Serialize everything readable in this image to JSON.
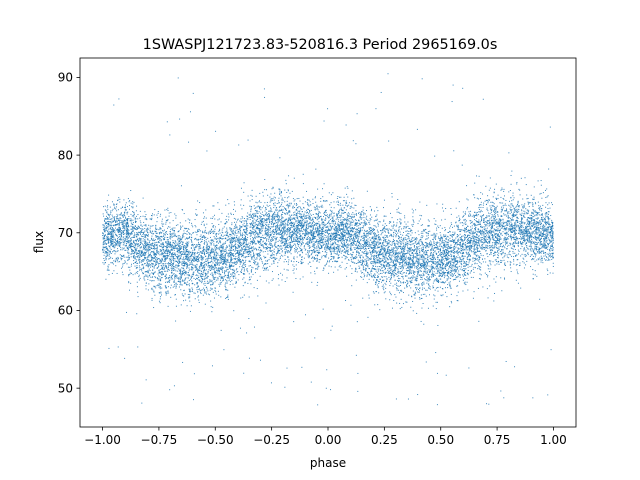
{
  "chart_data": {
    "type": "scatter",
    "title": "1SWASPJ121723.83-520816.3 Period 2965169.0s",
    "xlabel": "phase",
    "ylabel": "flux",
    "xlim": [
      -1.1,
      1.1
    ],
    "ylim": [
      45,
      92.5
    ],
    "xticks": [
      -1.0,
      -0.75,
      -0.5,
      -0.25,
      0.0,
      0.25,
      0.5,
      0.75,
      1.0
    ],
    "xtick_labels": [
      "−1.00",
      "−0.75",
      "−0.50",
      "−0.25",
      "0.00",
      "0.25",
      "0.50",
      "0.75",
      "1.00"
    ],
    "yticks": [
      50,
      60,
      70,
      80,
      90
    ],
    "ytick_labels": [
      "50",
      "60",
      "70",
      "80",
      "90"
    ],
    "grid": false,
    "legend": "none",
    "marker_color": "#1f77b4",
    "series": [
      {
        "phase_range": [
          -1.0,
          1.0
        ],
        "points_approx": 12000,
        "flux_profile": {
          "phase": [
            -1.0,
            -0.9,
            -0.8,
            -0.7,
            -0.6,
            -0.5,
            -0.4,
            -0.3,
            -0.2,
            -0.1,
            0.0,
            0.1,
            0.2,
            0.3,
            0.4,
            0.5,
            0.6,
            0.7,
            0.8,
            0.9,
            1.0
          ],
          "median_flux": [
            69.5,
            70,
            67.5,
            67,
            66.5,
            66.5,
            68,
            70,
            70.5,
            70,
            69.5,
            70,
            67.5,
            67,
            66.5,
            66.5,
            68,
            70,
            70.5,
            70,
            69.5
          ],
          "spread_flux": [
            3.5,
            3.5,
            4,
            4,
            4,
            4,
            4,
            4,
            4,
            3.5,
            3.5,
            3.5,
            4,
            4,
            4,
            4,
            4,
            4,
            4,
            3.5,
            3.5
          ]
        },
        "outlier_range": [
          47,
          90.5
        ]
      }
    ]
  }
}
